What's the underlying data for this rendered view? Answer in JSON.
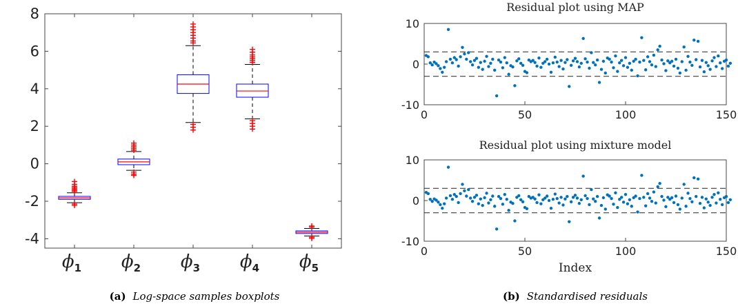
{
  "chart_data": [
    {
      "type": "boxplot",
      "ylim": [
        -4.5,
        8
      ],
      "yticks": [
        -4,
        -2,
        0,
        2,
        4,
        6,
        8
      ],
      "grid": false,
      "colors": {
        "box": "#0000ff",
        "median": "#ff0000",
        "whisker": "#000000",
        "outlier": "#ff0000"
      },
      "categories": [
        {
          "symbol": "ϕ",
          "sub": "1"
        },
        {
          "symbol": "ϕ",
          "sub": "2"
        },
        {
          "symbol": "ϕ",
          "sub": "3"
        },
        {
          "symbol": "ϕ",
          "sub": "4"
        },
        {
          "symbol": "ϕ",
          "sub": "5"
        }
      ],
      "boxes": [
        {
          "q1": -1.9,
          "median": -1.82,
          "q3": -1.74,
          "whislo": -2.08,
          "whishi": -1.55,
          "fliers": [
            -2.15,
            -2.22,
            -1.48,
            -1.42,
            -1.35,
            -1.28,
            -1.2,
            -1.1,
            -0.95
          ]
        },
        {
          "q1": -0.05,
          "median": 0.1,
          "q3": 0.25,
          "whislo": -0.35,
          "whishi": 0.65,
          "fliers": [
            -0.45,
            -0.55,
            -0.62,
            0.72,
            0.8,
            0.9,
            1.0,
            1.1
          ]
        },
        {
          "q1": 3.75,
          "median": 4.25,
          "q3": 4.75,
          "whislo": 2.2,
          "whishi": 6.3,
          "fliers": [
            2.1,
            1.95,
            1.8,
            6.45,
            6.55,
            6.7,
            6.85,
            7.0,
            7.15,
            7.3,
            7.45
          ]
        },
        {
          "q1": 3.55,
          "median": 3.88,
          "q3": 4.25,
          "whislo": 2.4,
          "whishi": 5.3,
          "fliers": [
            2.3,
            2.15,
            2.0,
            1.85,
            5.4,
            5.5,
            5.6,
            5.7,
            5.8,
            5.95,
            6.1
          ]
        },
        {
          "q1": -3.72,
          "median": -3.65,
          "q3": -3.58,
          "whislo": -3.85,
          "whishi": -3.45,
          "fliers": [
            -3.92,
            -3.98,
            -3.38,
            -3.32
          ]
        }
      ],
      "caption": {
        "label": "(a)",
        "text": "Log-space samples boxplots"
      }
    },
    {
      "type": "scatter",
      "title": "Residual plot using MAP",
      "xlim": [
        0,
        150
      ],
      "ylim": [
        -10,
        10
      ],
      "xticks": [
        0,
        50,
        100,
        150
      ],
      "yticks": [
        -10,
        0,
        10
      ],
      "hlines": [
        3,
        -3
      ],
      "x_start": 1,
      "y": [
        2.1,
        1.8,
        0.3,
        -0.2,
        0.5,
        0.1,
        -0.4,
        -1.1,
        -2.0,
        -0.8,
        0.6,
        8.5,
        1.2,
        0.3,
        1.6,
        1.1,
        -0.5,
        1.8,
        4.1,
        2.5,
        1.2,
        2.8,
        0.6,
        -0.2,
        0.9,
        1.4,
        -0.8,
        0.4,
        -1.3,
        0.7,
        1.9,
        -0.6,
        0.2,
        1.2,
        -1.5,
        -7.8,
        1.0,
        0.5,
        -0.9,
        1.6,
        0.3,
        -2.5,
        -0.4,
        -0.7,
        -5.3,
        0.8,
        1.3,
        0.2,
        -0.3,
        -1.8,
        -2.1,
        1.0,
        0.6,
        0.9,
        0.4,
        -0.5,
        1.5,
        -0.8,
        0.2,
        0.6,
        1.2,
        0.0,
        -2.0,
        0.3,
        1.7,
        0.5,
        -0.6,
        0.9,
        -1.2,
        0.4,
        1.1,
        -5.5,
        -0.3,
        0.8,
        1.4,
        0.6,
        -0.7,
        0.2,
        6.3,
        1.3,
        0.5,
        -1.0,
        2.8,
        0.4,
        -0.2,
        1.0,
        -4.5,
        -1.3,
        0.7,
        -2.2,
        1.5,
        1.2,
        0.5,
        -0.9,
        2.0,
        -1.8,
        0.3,
        0.9,
        -0.4,
        1.6,
        -0.8,
        0.2,
        -1.5,
        0.7,
        1.2,
        -2.9,
        0.5,
        6.5,
        0.9,
        -1.4,
        1.8,
        0.6,
        -0.2,
        2.2,
        -0.6,
        3.5,
        4.4,
        1.0,
        0.1,
        -1.6,
        0.8,
        0.3,
        0.7,
        -0.5,
        1.2,
        -1.0,
        -2.2,
        0.6,
        4.2,
        -1.5,
        1.9,
        0.5,
        -0.3,
        5.9,
        1.1,
        5.6,
        -0.7,
        0.9,
        -1.9,
        0.4,
        -0.4,
        -1.3,
        0.8,
        1.6,
        -0.6,
        2.0,
        0.3,
        -1.1,
        0.7,
        1.0,
        -0.5,
        0.2
      ]
    },
    {
      "type": "scatter",
      "title": "Residual plot using mixture model",
      "xlabel": "Index",
      "xlim": [
        0,
        150
      ],
      "ylim": [
        -10,
        10
      ],
      "xticks": [
        0,
        50,
        100,
        150
      ],
      "yticks": [
        -10,
        0,
        10
      ],
      "hlines": [
        3,
        -3
      ],
      "x_start": 1,
      "y": [
        2.0,
        1.7,
        0.3,
        -0.2,
        0.4,
        0.1,
        -0.4,
        -1.0,
        -1.9,
        -0.8,
        0.6,
        8.2,
        1.2,
        0.3,
        1.5,
        1.0,
        -0.5,
        1.7,
        4.0,
        2.4,
        1.1,
        2.7,
        0.6,
        -0.2,
        0.8,
        1.3,
        -0.8,
        0.4,
        -1.2,
        0.7,
        1.8,
        -0.6,
        0.2,
        1.1,
        -1.4,
        -7.0,
        1.0,
        0.5,
        -0.9,
        1.5,
        0.3,
        -2.4,
        -0.4,
        -0.7,
        -5.0,
        0.8,
        1.2,
        0.2,
        -0.3,
        -1.7,
        -2.0,
        1.0,
        0.6,
        0.8,
        0.4,
        -0.5,
        1.4,
        -0.8,
        0.2,
        0.6,
        1.1,
        0.0,
        -1.9,
        0.3,
        1.6,
        0.5,
        -0.6,
        0.8,
        -1.1,
        0.4,
        1.0,
        -5.2,
        -0.3,
        0.8,
        1.3,
        0.6,
        -0.7,
        0.2,
        6.0,
        1.2,
        0.5,
        -1.0,
        2.7,
        0.4,
        -0.2,
        1.0,
        -4.3,
        -1.2,
        0.7,
        -2.1,
        1.4,
        1.1,
        0.5,
        -0.9,
        1.9,
        -1.7,
        0.3,
        0.8,
        -0.4,
        1.5,
        -0.8,
        0.2,
        -1.4,
        0.7,
        1.1,
        -2.8,
        0.5,
        6.2,
        0.8,
        -1.3,
        1.7,
        0.6,
        -0.2,
        2.1,
        -0.6,
        3.4,
        4.2,
        1.0,
        0.1,
        -1.5,
        0.8,
        0.3,
        0.7,
        -0.5,
        1.1,
        -1.0,
        -2.1,
        0.6,
        4.0,
        -1.4,
        1.8,
        0.5,
        -0.3,
        5.6,
        1.0,
        5.3,
        -0.7,
        0.8,
        -1.8,
        0.4,
        -0.4,
        -1.2,
        0.8,
        1.5,
        -0.6,
        1.9,
        0.3,
        -1.0,
        0.7,
        1.0,
        -0.5,
        0.2
      ]
    }
  ],
  "captions": {
    "right": {
      "label": "(b)",
      "text": "Standardised residuals"
    }
  }
}
